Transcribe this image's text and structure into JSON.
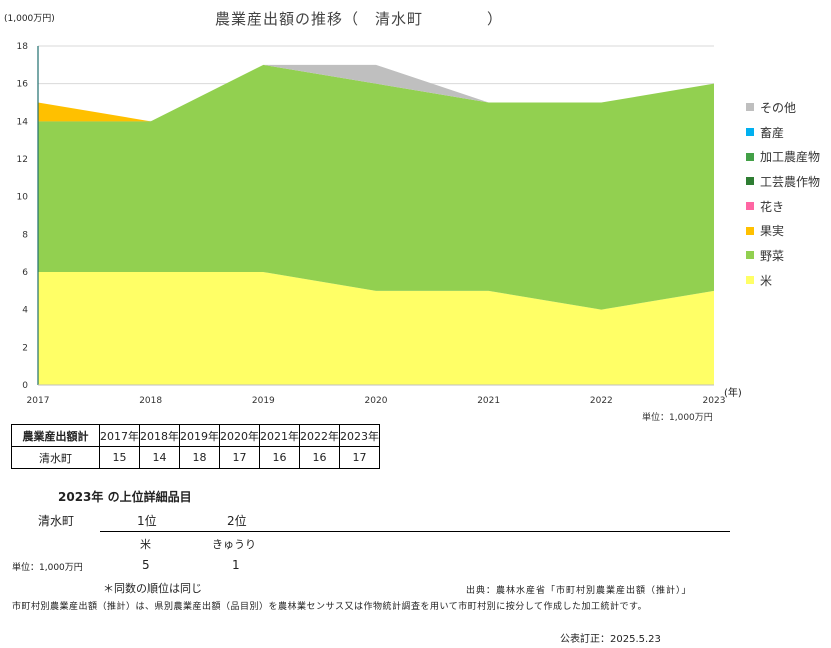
{
  "header": {
    "title": "農業産出額の推移（　清水町　　　　）",
    "y_unit": "(1,000万円)",
    "x_unit": "(年)",
    "unit_note": "単位：1,000万円"
  },
  "chart_data": {
    "type": "area",
    "stacked": true,
    "x": [
      "2017",
      "2018",
      "2019",
      "2020",
      "2021",
      "2022",
      "2023"
    ],
    "ylim": [
      0,
      18
    ],
    "yticks": [
      0,
      2,
      4,
      6,
      8,
      10,
      12,
      14,
      16,
      18
    ],
    "xlabel": "(年)",
    "ylabel": "(1,000万円)",
    "grid": true,
    "legend": "right",
    "series": [
      {
        "name": "米",
        "color": "#FFFF66",
        "values": [
          6,
          6,
          6,
          5,
          5,
          4,
          5
        ]
      },
      {
        "name": "野菜",
        "color": "#92D050",
        "values": [
          8,
          8,
          11,
          11,
          10,
          11,
          11
        ]
      },
      {
        "name": "果実",
        "color": "#FFC000",
        "values": [
          1,
          0,
          0,
          0,
          0,
          0,
          0
        ]
      },
      {
        "name": "花き",
        "color": "#FF66A3",
        "values": [
          0,
          0,
          0,
          0,
          0,
          0,
          0
        ]
      },
      {
        "name": "工芸農作物",
        "color": "#2E7D32",
        "values": [
          0,
          0,
          0,
          0,
          0,
          0,
          0
        ]
      },
      {
        "name": "加工農産物",
        "color": "#43A047",
        "values": [
          0,
          0,
          0,
          0,
          0,
          0,
          0
        ]
      },
      {
        "name": "畜産",
        "color": "#00B0F0",
        "values": [
          0,
          0,
          0,
          0,
          0,
          0,
          0
        ]
      },
      {
        "name": "その他",
        "color": "#BFBFBF",
        "values": [
          0,
          0,
          0,
          1,
          0,
          0,
          0
        ]
      }
    ]
  },
  "legend_items": [
    {
      "label": "その他",
      "color": "#BFBFBF"
    },
    {
      "label": "畜産",
      "color": "#00B0F0"
    },
    {
      "label": "加工農産物",
      "color": "#43A047"
    },
    {
      "label": "工芸農作物",
      "color": "#2E7D32"
    },
    {
      "label": "花き",
      "color": "#FF66A3"
    },
    {
      "label": "果実",
      "color": "#FFC000"
    },
    {
      "label": "野菜",
      "color": "#92D050"
    },
    {
      "label": "米",
      "color": "#FFFF66"
    }
  ],
  "total_table": {
    "corner": "農業産出額計",
    "years": [
      "2017年",
      "2018年",
      "2019年",
      "2020年",
      "2021年",
      "2022年",
      "2023年"
    ],
    "municipality": "清水町",
    "values": [
      "15",
      "14",
      "18",
      "17",
      "16",
      "16",
      "17"
    ]
  },
  "ranking": {
    "title": "2023年 の上位詳細品目",
    "municipality": "清水町",
    "rank1_label": "1位",
    "rank2_label": "2位",
    "rank1_item": "米",
    "rank2_item": "きゅうり",
    "unit": "単位：1,000万円",
    "rank1_value": "5",
    "rank2_value": "1"
  },
  "footer": {
    "same_rank_note": "＊同数の順位は同じ",
    "source": "出典：農林水産省「市町村別農業産出額（推計）」",
    "description": "市町村別農業産出額（推計）は、県別農業産出額（品目別）を農林業センサス又は作物統計調査を用いて市町村別に按分して作成した加工統計です。",
    "revised": "公表訂正：2025.5.23"
  }
}
